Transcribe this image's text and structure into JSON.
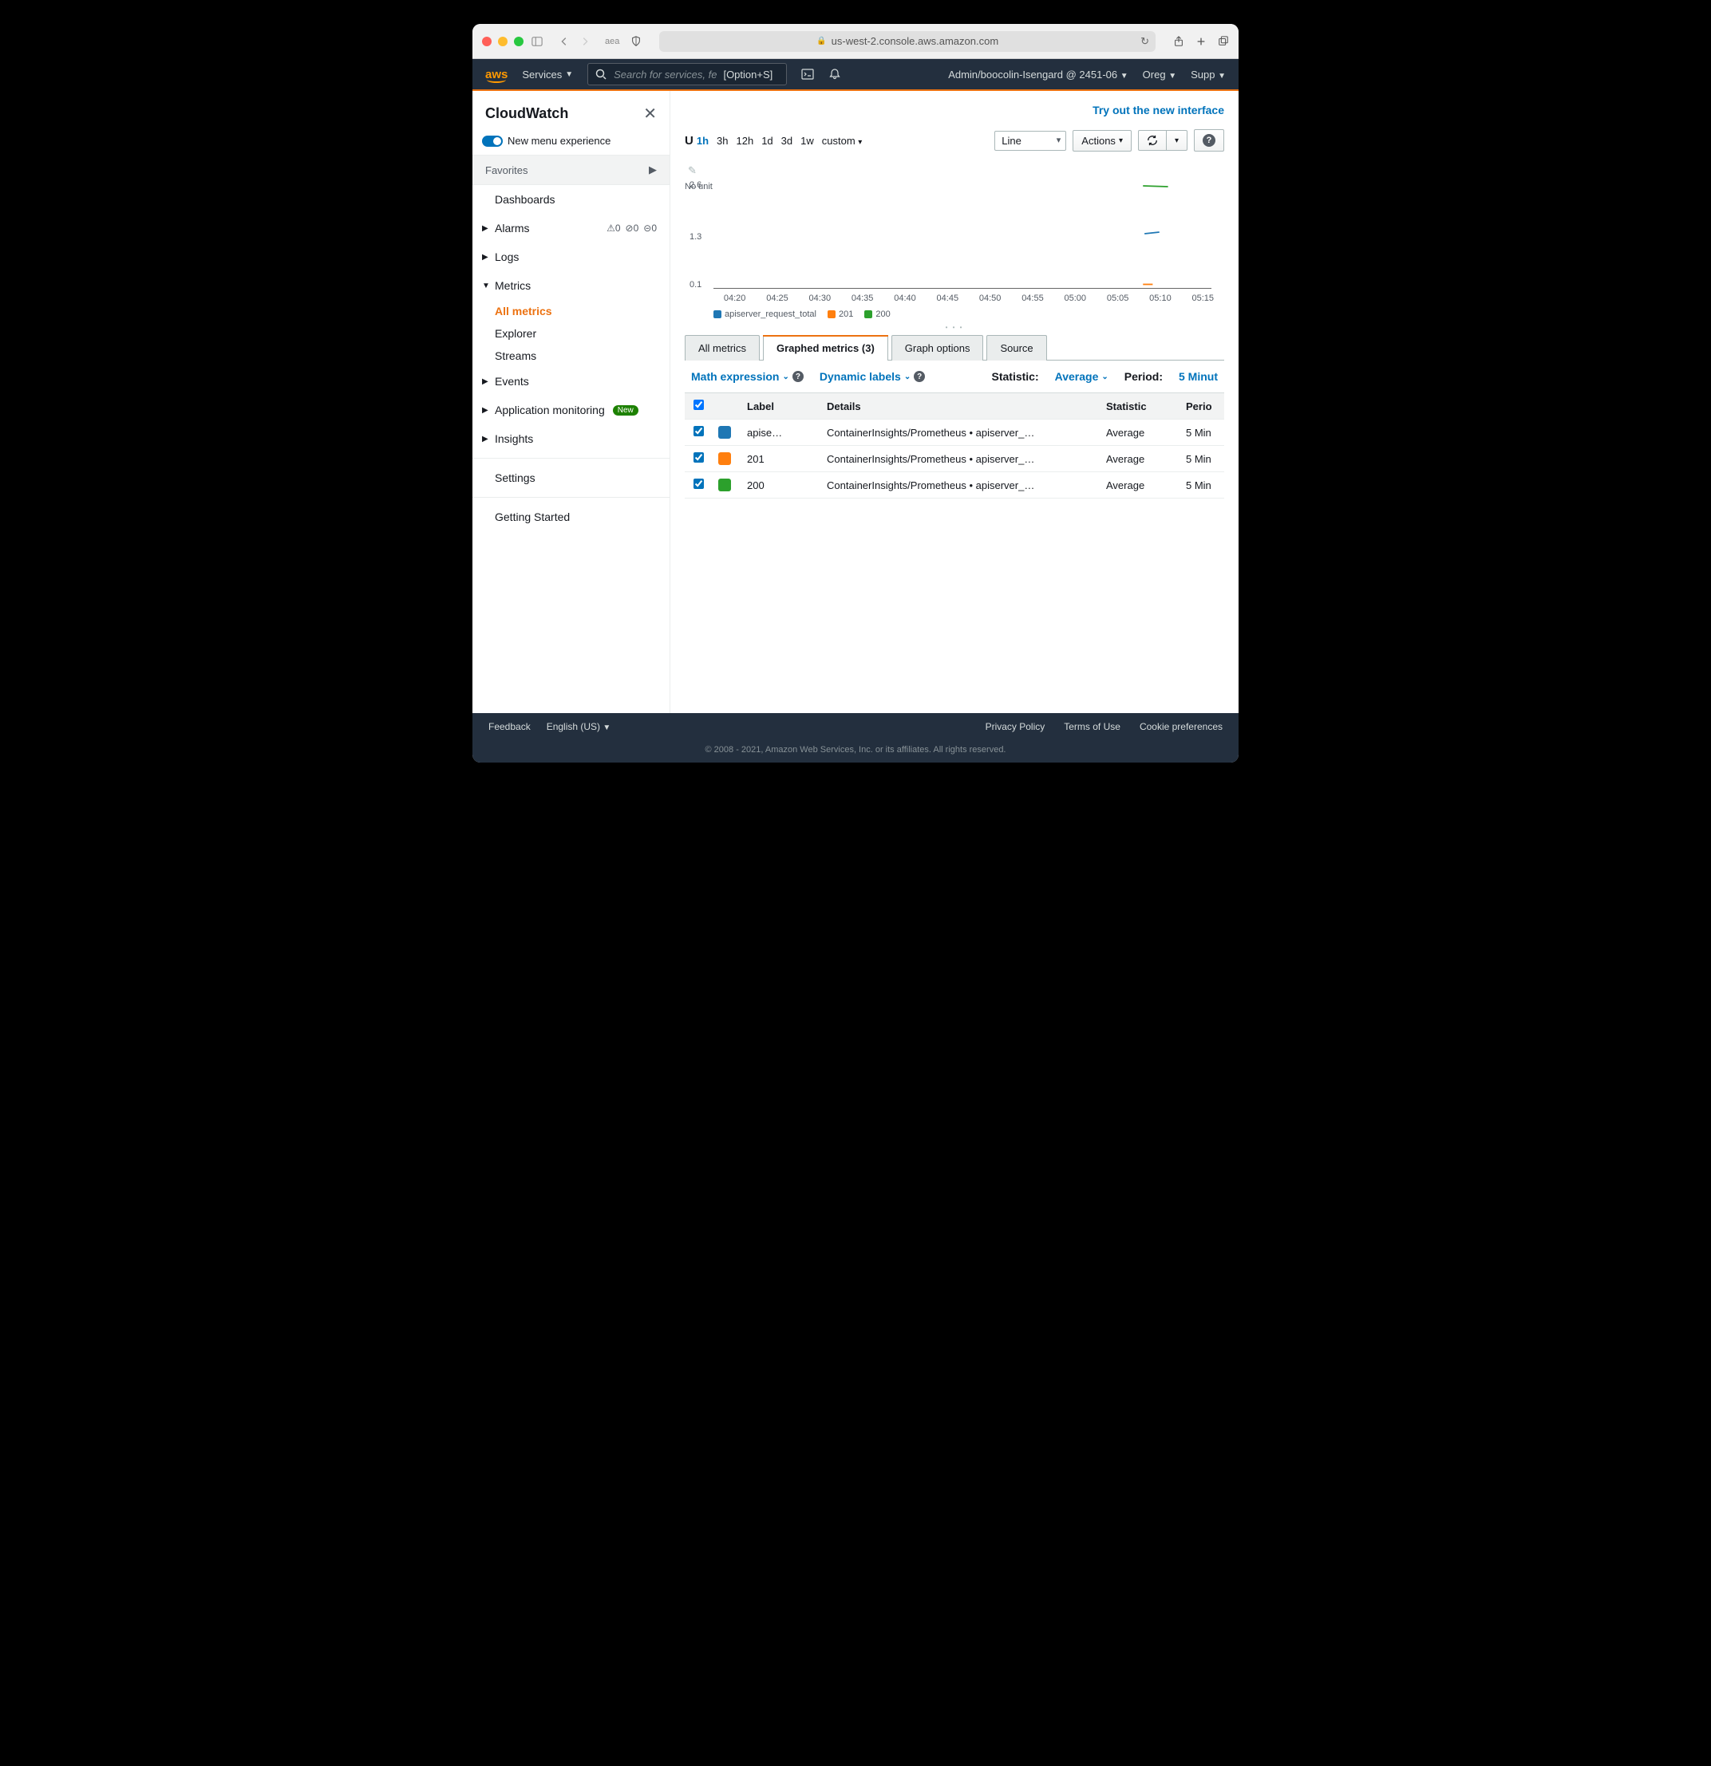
{
  "browser": {
    "url_host": "us-west-2.console.aws.amazon.com",
    "site_tag": "aea",
    "traffic_colors": [
      "#ff5f57",
      "#febc2e",
      "#28c840"
    ]
  },
  "aws_nav": {
    "logo": "aws",
    "services": "Services",
    "search_placeholder": "Search for services, fe",
    "search_shortcut": "[Option+S]",
    "user": "Admin/boocolin-Isengard @ 2451-06",
    "region": "Oreg",
    "support": "Supp"
  },
  "sidebar": {
    "title": "CloudWatch",
    "menu_experience": "New menu experience",
    "favorites": "Favorites",
    "items": [
      {
        "label": "Dashboards",
        "caret": "",
        "badges": false
      },
      {
        "label": "Alarms",
        "caret": "▶",
        "badges": true,
        "b1": "0",
        "b2": "0",
        "b3": "0"
      },
      {
        "label": "Logs",
        "caret": "▶"
      },
      {
        "label": "Metrics",
        "caret": "▼",
        "expanded": true,
        "subs": [
          {
            "label": "All metrics",
            "active": true
          },
          {
            "label": "Explorer"
          },
          {
            "label": "Streams"
          }
        ]
      },
      {
        "label": "Events",
        "caret": "▶"
      },
      {
        "label": "Application monitoring",
        "caret": "▶",
        "new": "New"
      },
      {
        "label": "Insights",
        "caret": "▶"
      },
      {
        "label": "Settings",
        "caret": ""
      }
    ],
    "getting_started": "Getting Started"
  },
  "main": {
    "try_link": "Try out the new interface",
    "time_ranges": [
      "1h",
      "3h",
      "12h",
      "1d",
      "3d",
      "1w",
      "custom"
    ],
    "time_active": "1h",
    "chart_type": "Line",
    "actions_label": "Actions",
    "chart": {
      "no_unit": "No unit",
      "y_ticks": [
        "2.6",
        "1.3",
        "0.1"
      ],
      "x_ticks": [
        "04:20",
        "04:25",
        "04:30",
        "04:35",
        "04:40",
        "04:45",
        "04:50",
        "04:55",
        "05:00",
        "05:05",
        "05:10",
        "05:15"
      ],
      "series": [
        {
          "label": "apiserver_request_total",
          "color": "#1f77b4",
          "x": [
            84.4,
            87.3
          ],
          "y": [
            1.38,
            1.42
          ]
        },
        {
          "label": "201",
          "color": "#ff7f0e",
          "x": [
            84.1,
            86.0
          ],
          "y": [
            0.11,
            0.11
          ]
        },
        {
          "label": "200",
          "color": "#2ca02c",
          "x": [
            84.1,
            89.0
          ],
          "y": [
            2.58,
            2.56
          ]
        }
      ],
      "y_max": 2.6,
      "background_color": "#ffffff"
    },
    "tabs": [
      {
        "label": "All metrics"
      },
      {
        "label": "Graphed metrics (3)",
        "active": true
      },
      {
        "label": "Graph options"
      },
      {
        "label": "Source"
      }
    ],
    "controls": {
      "math": "Math expression",
      "dynamic": "Dynamic labels",
      "statistic_label": "Statistic:",
      "statistic_value": "Average",
      "period_label": "Period:",
      "period_value": "5 Minut"
    },
    "table": {
      "headers": [
        "Label",
        "Details",
        "Statistic",
        "Perio"
      ],
      "rows": [
        {
          "color": "#1f77b4",
          "label": "apise…",
          "details": "ContainerInsights/Prometheus • apiserver_…",
          "stat": "Average",
          "period": "5 Min"
        },
        {
          "color": "#ff7f0e",
          "label": "201",
          "details": "ContainerInsights/Prometheus • apiserver_…",
          "stat": "Average",
          "period": "5 Min"
        },
        {
          "color": "#2ca02c",
          "label": "200",
          "details": "ContainerInsights/Prometheus • apiserver_…",
          "stat": "Average",
          "period": "5 Min"
        }
      ]
    }
  },
  "footer": {
    "feedback": "Feedback",
    "language": "English (US)",
    "privacy": "Privacy Policy",
    "terms": "Terms of Use",
    "cookies": "Cookie preferences",
    "copyright": "© 2008 - 2021, Amazon Web Services, Inc. or its affiliates. All rights reserved."
  }
}
